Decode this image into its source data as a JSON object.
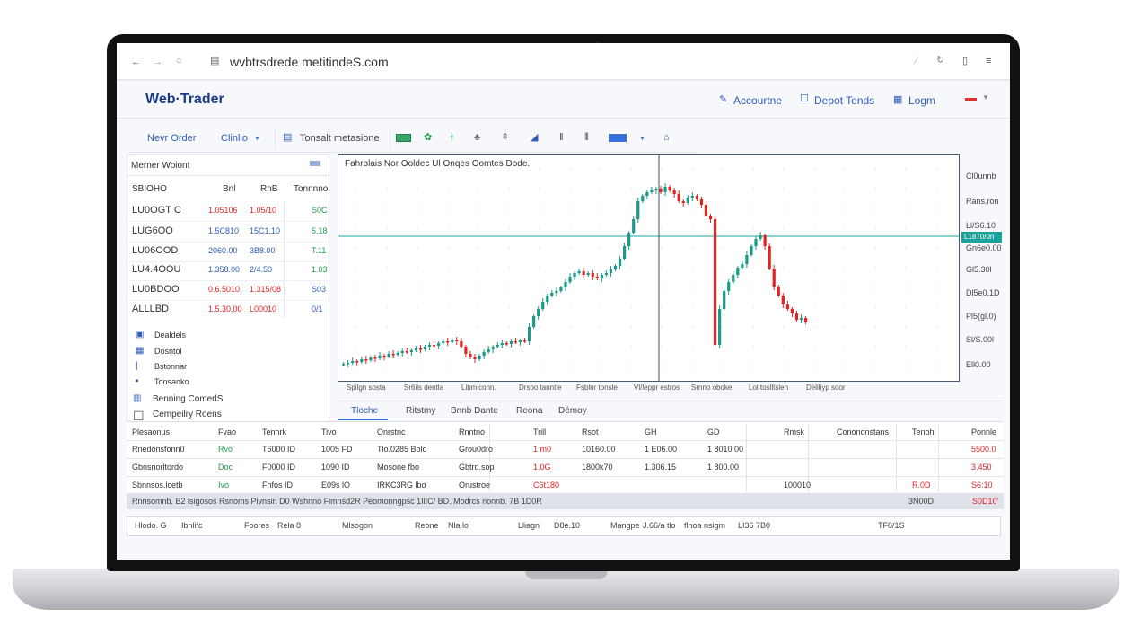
{
  "browser": {
    "url": "wvbtrsdrede metitindeS.com",
    "icons": [
      "back-arrow-icon",
      "forward-arrow-icon",
      "reload-icon",
      "lock-icon",
      "extension-icon",
      "refresh-icon",
      "bookmark-icon",
      "menu-icon"
    ]
  },
  "header": {
    "title": "Web·Trader",
    "nav": [
      {
        "label": "Accourtne",
        "icon": "user-icon"
      },
      {
        "label": "Depot Tends",
        "icon": "square-icon"
      },
      {
        "label": "Logm",
        "icon": "book-icon"
      }
    ],
    "flag": "flag-icon"
  },
  "toolbar": {
    "new_order": "Nevr Order",
    "charts": "Clinlio",
    "template": "Tonsalt metasione"
  },
  "market_watch": {
    "title": "Merner Woiont",
    "columns": [
      "SBIOHO",
      "Bnl",
      "RnB",
      "Tonnnno"
    ],
    "rows": [
      {
        "symbol": "LU0OGT C",
        "bid": "1.05106",
        "ask": "1.05/10",
        "chg": "S0C",
        "bid_color": "red",
        "ask_color": "red",
        "chg_color": "green"
      },
      {
        "symbol": "LUG6OO",
        "bid": "1.5C810",
        "ask": "15C1.10",
        "chg": "5.18",
        "bid_color": "blue",
        "ask_color": "blue",
        "chg_color": "green"
      },
      {
        "symbol": "LU06OOD",
        "bid": "2060.00",
        "ask": "3B8.00",
        "chg": "T.11",
        "bid_color": "blue",
        "ask_color": "blue",
        "chg_color": "green"
      },
      {
        "symbol": "LU4.4OOU",
        "bid": "1.358.00",
        "ask": "2/4.50",
        "chg": "1.03",
        "bid_color": "blue",
        "ask_color": "blue",
        "chg_color": "green"
      },
      {
        "symbol": "LU0BDOO",
        "bid": "0.6.5010",
        "ask": "1.315/08",
        "chg": "S03",
        "bid_color": "red",
        "ask_color": "red",
        "chg_color": "blue"
      },
      {
        "symbol": "ALLLBD",
        "bid": "1.5.30.00",
        "ask": "L00010",
        "chg": "0/1",
        "bid_color": "red",
        "ask_color": "red",
        "chg_color": "blue"
      }
    ],
    "menu": [
      {
        "label": "Dealdels",
        "icon": "window-icon"
      },
      {
        "label": "Dosntol",
        "icon": "grid-icon"
      },
      {
        "label": "Bstonnar",
        "icon": "line-icon"
      },
      {
        "label": "Tonsanko",
        "icon": "table-icon"
      },
      {
        "label": "Benning ComerlS",
        "icon": "chart-icon"
      },
      {
        "label": "Cempeilry Roens",
        "icon": "checkbox-icon"
      }
    ]
  },
  "chart": {
    "title": "Fahrolais Nor Ooldec Ul Onqes Oomtes Dode.",
    "up_color": "#1a9a8a",
    "down_color": "#e02424",
    "line_color": "#1aa39a",
    "price_labels": [
      "Cl0unnb",
      "Rans.ron",
      "Ll/S6.10",
      "Gn6e0.00",
      "Gl5.30l",
      "Dl5e0.1D",
      "Pl5(gl.0)",
      "Sl/S.00l",
      "Ell0.00"
    ],
    "current_price_label": "L1870/0n",
    "current_price": 161,
    "time_labels": [
      "Spilgn sosta",
      "Sr6ils dentla",
      "Libmiconn.",
      "Drsoo tanntle",
      "Fsblnr tonsle",
      "Vl/leppr estros",
      "Srnno oboke",
      "Lol toslltslen",
      "Deliliyp soor"
    ],
    "closes": [
      19,
      20,
      22,
      21,
      24,
      23,
      26,
      25,
      28,
      27,
      30,
      29,
      31,
      33,
      32,
      34,
      36,
      35,
      38,
      40,
      39,
      42,
      44,
      43,
      46,
      44,
      38,
      30,
      26,
      24,
      28,
      32,
      35,
      38,
      40,
      42,
      41,
      44,
      43,
      45,
      44,
      60,
      72,
      80,
      88,
      95,
      98,
      100,
      104,
      110,
      116,
      120,
      122,
      118,
      120,
      116,
      114,
      118,
      120,
      124,
      128,
      136,
      150,
      165,
      180,
      200,
      206,
      210,
      212,
      214,
      210,
      216,
      212,
      208,
      200,
      198,
      204,
      206,
      202,
      196,
      184,
      180,
      40,
      80,
      100,
      110,
      118,
      126,
      130,
      140,
      150,
      158,
      162,
      150,
      125,
      105,
      95,
      85,
      80,
      75,
      68,
      70,
      65
    ]
  },
  "tabs": [
    {
      "label": "Tloche",
      "active": true
    },
    {
      "label": "Ritstmy"
    },
    {
      "label": "Bnnb Dante"
    },
    {
      "label": "Reona"
    },
    {
      "label": "Démoy"
    }
  ],
  "positions": {
    "columns": [
      "Plesaonus",
      "Fvao",
      "Tennrk",
      "Tivo",
      "Onrstnc",
      "Rnntno",
      "Trill",
      "Rsot",
      "GH",
      "GD",
      "Rmsk",
      "Conononstans",
      "Tenoh",
      "Ponnle"
    ],
    "rows": [
      [
        "Rnedonsfonn0",
        "Rvo",
        "T6000 ID",
        "1005 FD",
        "Tlo.0285 Bolo",
        "Grou0dro",
        "1 m0",
        "10160.00",
        "1 E06.00",
        "1 8010 00",
        "",
        "",
        "",
        "5500.0"
      ],
      [
        "Gbnsnorltordo",
        "Doc",
        "F0000 ID",
        "1090 ID",
        "Mosone fbo",
        "Gbtrd.sop",
        "1.0G",
        "1800k70",
        "1.306.15",
        "1 800.00",
        "",
        "",
        "",
        "3.450"
      ],
      [
        "Sbnnsos.lcetb",
        "Ivo",
        "Fhfos ID",
        "E09s lO",
        "IRKC3RG lbo",
        "Orustroe",
        "C6t180",
        "",
        "",
        "",
        "100010",
        "",
        "R.0D",
        "S6:10"
      ]
    ],
    "summary": "Rnnsomnb. B2 lsigosos  Rsnoms  Pivnsin D0  Wshnno  Fimnsd2R  Peomonngpsc  1IlIC/ BD.  Modrcs nonnb.  7B 1D0R",
    "summary_total": "3N00D",
    "summary_pl": "S0D10'"
  },
  "status_bar": [
    "Hlodo. G",
    "Ibnlifc",
    "Foores",
    "Rela 8",
    "Mlsogon",
    "Reone",
    "Nla lo",
    "Lliagn",
    "D8e.10",
    "Mangpe",
    "J.66/a tlo",
    "flnoa nsigm",
    "LI36 7B0",
    "TF0/1S"
  ]
}
